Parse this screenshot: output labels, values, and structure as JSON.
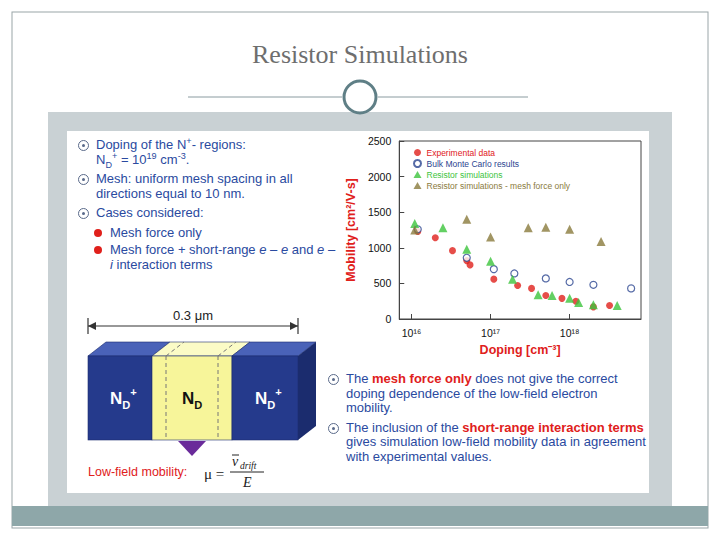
{
  "slide": {
    "title": "Resistor Simulations",
    "setup": [
      {
        "lines": [
          [
            {
              "text": "Doping of the N"
            },
            {
              "text": "+",
              "style": "sup"
            },
            {
              "text": "- regions:"
            }
          ],
          [
            {
              "text": "N"
            },
            {
              "text": "D",
              "style": "sub"
            },
            {
              "text": "+",
              "style": "sup"
            },
            {
              "text": " = 10"
            },
            {
              "text": "19",
              "style": "sup"
            },
            {
              "text": " cm"
            },
            {
              "text": "-3",
              "style": "sup"
            },
            {
              "text": "."
            }
          ]
        ]
      },
      {
        "lines": [
          [
            {
              "text": "Mesh: uniform mesh spacing in all directions equal to 10 nm."
            }
          ]
        ]
      },
      {
        "lines": [
          [
            {
              "text": "Cases considered:"
            }
          ]
        ],
        "items": [
          [
            {
              "text": "Mesh force only"
            }
          ],
          [
            {
              "text": "Mesh force + short-range "
            },
            {
              "text": "e – e",
              "style": "italic"
            },
            {
              "text": " and "
            },
            {
              "text": "e – i",
              "style": "italic"
            },
            {
              "text": " interaction terms"
            }
          ]
        ]
      }
    ],
    "diagram": {
      "length": "0.3 μm",
      "regions": [
        [
          {
            "text": "N"
          },
          {
            "text": "D",
            "style": "sub"
          },
          {
            "text": "+",
            "style": "sup"
          }
        ],
        [
          {
            "text": "N"
          },
          {
            "text": "D",
            "style": "sub"
          }
        ],
        [
          {
            "text": "N"
          },
          {
            "text": "D",
            "style": "sub"
          },
          {
            "text": "+",
            "style": "sup"
          }
        ]
      ],
      "mobility_label": "Low-field mobility:",
      "formula": {
        "lhs": "μ =",
        "numerator": "v",
        "numerator_sub": "drift",
        "denominator": "E"
      }
    },
    "conclusions": [
      [
        {
          "text": "The "
        },
        {
          "text": "mesh force only",
          "style": "emph"
        },
        {
          "text": " does not give the correct doping dependence of the low-field electron mobility."
        }
      ],
      [
        {
          "text": "The inclusion of the "
        },
        {
          "text": "short-range interaction terms",
          "style": "emph"
        },
        {
          "text": " gives simulation low-field mobility data in agreement with experimental values."
        }
      ]
    ]
  },
  "chart_data": {
    "type": "scatter",
    "xlabel": "Doping [cm⁻³]",
    "ylabel": "Mobility [cm²/V-s]",
    "log": "x",
    "xlim": [
      7000000000000000.0,
      8e+18
    ],
    "xticks": [
      {
        "value": 1e+16,
        "label": "10¹⁶"
      },
      {
        "value": 1e+17,
        "label": "10¹⁷"
      },
      {
        "value": 1e+18,
        "label": "10¹⁸"
      }
    ],
    "ylim": [
      0,
      2500
    ],
    "yticks": [
      0,
      500,
      1000,
      1500,
      2000,
      2500
    ],
    "grid": false,
    "legend": "upper left",
    "series": [
      {
        "name": "Experimental data",
        "color": "#e0201b",
        "marker": "circle",
        "x": [
          1.2e+16,
          2e+16,
          3.3e+16,
          5e+16,
          5.5e+16,
          1.1e+17,
          2.2e+17,
          3.3e+17,
          5e+17,
          8e+17,
          1.2e+18,
          2e+18,
          3.2e+18
        ],
        "values": [
          1230,
          1140,
          960,
          820,
          760,
          560,
          470,
          430,
          330,
          290,
          250,
          170,
          190
        ]
      },
      {
        "name": "Bulk Monte Carlo results",
        "color": "#2b4590",
        "marker": "open_circle",
        "x": [
          1.2e+16,
          5e+16,
          1.1e+17,
          2e+17,
          5e+17,
          1e+18,
          2e+18,
          6e+18
        ],
        "values": [
          1260,
          860,
          700,
          640,
          570,
          520,
          480,
          430
        ]
      },
      {
        "name": "Resistor simulations",
        "color": "#3cc43c",
        "marker": "triangle",
        "x": [
          1.1e+16,
          2.5e+16,
          5e+16,
          1e+17,
          1.9e+17,
          4e+17,
          6e+17,
          1e+18,
          1.3e+18,
          2e+18,
          4e+18
        ],
        "values": [
          1340,
          1280,
          980,
          810,
          560,
          340,
          330,
          290,
          230,
          200,
          190
        ]
      },
      {
        "name": "Resistor simulations - mesh force only",
        "color": "#8a7a3c",
        "marker": "triangle",
        "x": [
          1.1e+16,
          5e+16,
          1e+17,
          3e+17,
          5e+17,
          1e+18,
          2.5e+18
        ],
        "values": [
          1250,
          1400,
          1150,
          1280,
          1290,
          1260,
          1090
        ]
      }
    ]
  }
}
